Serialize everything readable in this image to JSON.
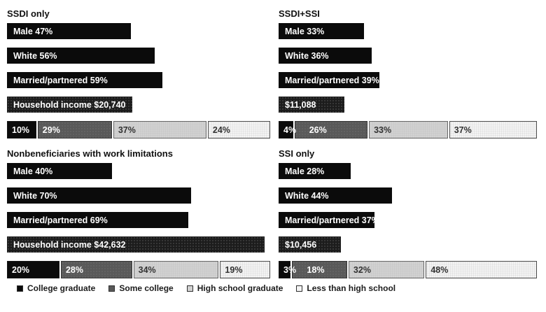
{
  "figure": {
    "background_color": "#ffffff",
    "bar_color": "#0b0b0b",
    "income_bar_color": "#1c1c1c",
    "bar_text_color": "#ffffff"
  },
  "chart_data": {
    "type": "bar",
    "layout": "2x2 grid of panels, horizontal bars, stacked education bar per panel, legend bottom-left",
    "income_axis_max": 43500,
    "percent_axis_max": 100,
    "groups": [
      {
        "title": "SSDI only",
        "bars": [
          {
            "label": "Male 47%",
            "value": 47,
            "kind": "percent"
          },
          {
            "label": "White 56%",
            "value": 56,
            "kind": "percent"
          },
          {
            "label": "Married/partnered 59%",
            "value": 59,
            "kind": "percent"
          },
          {
            "label": "Household income $20,740",
            "value": 20740,
            "kind": "income"
          }
        ],
        "education_values": [
          10,
          29,
          37,
          24
        ],
        "education_labels": [
          "10%",
          "29%",
          "37%",
          "24%"
        ]
      },
      {
        "title": "SSDI+SSI",
        "bars": [
          {
            "label": "Male 33%",
            "value": 33,
            "kind": "percent"
          },
          {
            "label": "White 36%",
            "value": 36,
            "kind": "percent"
          },
          {
            "label": "Married/partnered 39%",
            "value": 39,
            "kind": "percent"
          },
          {
            "label": "$11,088",
            "value": 11088,
            "kind": "income"
          }
        ],
        "education_values": [
          4,
          26,
          33,
          37
        ],
        "education_labels": [
          "4%",
          "26%",
          "33%",
          "37%"
        ]
      },
      {
        "title": "Nonbeneficiaries with work limitations",
        "bars": [
          {
            "label": "Male 40%",
            "value": 40,
            "kind": "percent"
          },
          {
            "label": "White 70%",
            "value": 70,
            "kind": "percent"
          },
          {
            "label": "Married/partnered 69%",
            "value": 69,
            "kind": "percent"
          },
          {
            "label": "Household income $42,632",
            "value": 42632,
            "kind": "income"
          }
        ],
        "education_values": [
          20,
          28,
          34,
          19
        ],
        "education_labels": [
          "20%",
          "28%",
          "34%",
          "19%"
        ]
      },
      {
        "title": "SSI only",
        "bars": [
          {
            "label": "Male 28%",
            "value": 28,
            "kind": "percent"
          },
          {
            "label": "White 44%",
            "value": 44,
            "kind": "percent"
          },
          {
            "label": "Married/partnered 37%",
            "value": 37,
            "kind": "percent"
          },
          {
            "label": "$10,456",
            "value": 10456,
            "kind": "income"
          }
        ],
        "education_values": [
          3,
          18,
          32,
          48
        ],
        "education_labels": [
          "3%",
          "18%",
          "32%",
          "48%"
        ]
      }
    ],
    "legend": [
      {
        "label": "College graduate",
        "color": "#0b0b0b",
        "text_color": "#ffffff"
      },
      {
        "label": "Some college",
        "color": "#595959",
        "text_color": "#ffffff"
      },
      {
        "label": "High school graduate",
        "color": "#d2d2d2",
        "text_color": "#333333"
      },
      {
        "label": "Less than high school",
        "color": "#f4f4f4",
        "text_color": "#333333"
      }
    ],
    "legend_position": "bottom-left"
  }
}
